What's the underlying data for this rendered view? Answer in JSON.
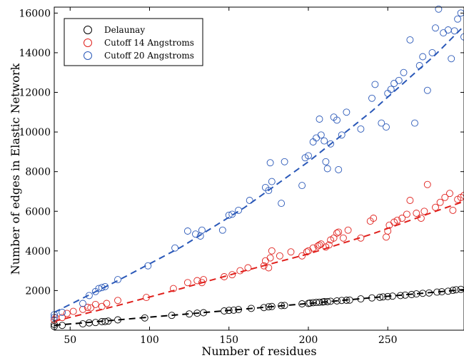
{
  "chart_data": {
    "type": "scatter",
    "xlabel": "Number of residues",
    "ylabel": "Number of edges in Elastic Network",
    "xlim": [
      40,
      298
    ],
    "ylim": [
      0,
      16300
    ],
    "xticks": [
      50,
      100,
      150,
      200,
      250
    ],
    "yticks": [
      2000,
      4000,
      6000,
      8000,
      10000,
      12000,
      14000,
      16000
    ],
    "grid": false,
    "legend_position": "top-left",
    "series": [
      {
        "name": "Delaunay",
        "color": "#000000",
        "marker": "open-circle",
        "fit": "dashed",
        "fit_points": [
          [
            40,
            245
          ],
          [
            80,
            520
          ],
          [
            120,
            790
          ],
          [
            160,
            1070
          ],
          [
            200,
            1350
          ],
          [
            240,
            1640
          ],
          [
            280,
            1920
          ],
          [
            298,
            2050
          ]
        ],
        "points": [
          [
            40,
            190
          ],
          [
            40,
            290
          ],
          [
            45,
            240
          ],
          [
            58,
            320
          ],
          [
            62,
            370
          ],
          [
            66,
            390
          ],
          [
            70,
            430
          ],
          [
            72,
            440
          ],
          [
            74,
            460
          ],
          [
            80,
            520
          ],
          [
            97,
            620
          ],
          [
            114,
            750
          ],
          [
            125,
            820
          ],
          [
            130,
            860
          ],
          [
            134,
            880
          ],
          [
            147,
            970
          ],
          [
            150,
            1000
          ],
          [
            153,
            1010
          ],
          [
            156,
            1040
          ],
          [
            164,
            1100
          ],
          [
            172,
            1140
          ],
          [
            175,
            1180
          ],
          [
            177,
            1200
          ],
          [
            183,
            1240
          ],
          [
            185,
            1250
          ],
          [
            196,
            1330
          ],
          [
            200,
            1350
          ],
          [
            201,
            1370
          ],
          [
            203,
            1390
          ],
          [
            205,
            1400
          ],
          [
            207,
            1410
          ],
          [
            209,
            1420
          ],
          [
            210,
            1440
          ],
          [
            212,
            1440
          ],
          [
            214,
            1460
          ],
          [
            218,
            1480
          ],
          [
            221,
            1500
          ],
          [
            224,
            1510
          ],
          [
            226,
            1520
          ],
          [
            233,
            1580
          ],
          [
            240,
            1630
          ],
          [
            245,
            1660
          ],
          [
            247,
            1680
          ],
          [
            250,
            1700
          ],
          [
            253,
            1720
          ],
          [
            258,
            1750
          ],
          [
            261,
            1770
          ],
          [
            265,
            1800
          ],
          [
            268,
            1830
          ],
          [
            272,
            1860
          ],
          [
            276,
            1880
          ],
          [
            281,
            1920
          ],
          [
            284,
            1940
          ],
          [
            288,
            1970
          ],
          [
            291,
            2010
          ],
          [
            293,
            2040
          ],
          [
            296,
            2060
          ]
        ]
      },
      {
        "name": "Cutoff 14 Angstroms",
        "color": "#e0201c",
        "marker": "open-circle",
        "fit": "dashed",
        "fit_points": [
          [
            40,
            450
          ],
          [
            80,
            1250
          ],
          [
            120,
            2100
          ],
          [
            160,
            3000
          ],
          [
            200,
            3850
          ],
          [
            240,
            4850
          ],
          [
            280,
            6000
          ],
          [
            298,
            6500
          ]
        ],
        "points": [
          [
            40,
            520
          ],
          [
            41,
            620
          ],
          [
            45,
            640
          ],
          [
            48,
            850
          ],
          [
            52,
            950
          ],
          [
            58,
            1050
          ],
          [
            61,
            1150
          ],
          [
            63,
            1130
          ],
          [
            66,
            1300
          ],
          [
            70,
            1200
          ],
          [
            73,
            1350
          ],
          [
            80,
            1500
          ],
          [
            98,
            1650
          ],
          [
            115,
            2100
          ],
          [
            124,
            2400
          ],
          [
            130,
            2500
          ],
          [
            133,
            2400
          ],
          [
            134,
            2550
          ],
          [
            147,
            2700
          ],
          [
            152,
            2800
          ],
          [
            157,
            3000
          ],
          [
            162,
            3150
          ],
          [
            172,
            3250
          ],
          [
            173,
            3500
          ],
          [
            175,
            3150
          ],
          [
            176,
            3650
          ],
          [
            177,
            4000
          ],
          [
            182,
            3750
          ],
          [
            189,
            3950
          ],
          [
            196,
            3750
          ],
          [
            199,
            3950
          ],
          [
            200,
            4000
          ],
          [
            203,
            4150
          ],
          [
            206,
            4250
          ],
          [
            207,
            4300
          ],
          [
            208,
            4350
          ],
          [
            211,
            4200
          ],
          [
            213,
            4300
          ],
          [
            214,
            4550
          ],
          [
            216,
            4650
          ],
          [
            218,
            4900
          ],
          [
            219,
            4950
          ],
          [
            222,
            4650
          ],
          [
            225,
            5050
          ],
          [
            233,
            4650
          ],
          [
            239,
            5500
          ],
          [
            241,
            5650
          ],
          [
            249,
            4700
          ],
          [
            250,
            5000
          ],
          [
            251,
            5300
          ],
          [
            254,
            5450
          ],
          [
            256,
            5550
          ],
          [
            259,
            5650
          ],
          [
            262,
            5850
          ],
          [
            264,
            6550
          ],
          [
            268,
            5900
          ],
          [
            271,
            5650
          ],
          [
            273,
            6000
          ],
          [
            275,
            7350
          ],
          [
            280,
            6200
          ],
          [
            283,
            6450
          ],
          [
            286,
            6700
          ],
          [
            289,
            6900
          ],
          [
            291,
            6050
          ],
          [
            294,
            6600
          ],
          [
            296,
            6700
          ],
          [
            298,
            6800
          ]
        ]
      },
      {
        "name": "Cutoff 20 Angstroms",
        "color": "#2a58b8",
        "marker": "open-circle",
        "fit": "dashed",
        "fit_points": [
          [
            40,
            900
          ],
          [
            80,
            2500
          ],
          [
            120,
            4200
          ],
          [
            160,
            6200
          ],
          [
            200,
            8500
          ],
          [
            240,
            11050
          ],
          [
            280,
            13900
          ],
          [
            298,
            15350
          ]
        ],
        "points": [
          [
            40,
            650
          ],
          [
            40,
            780
          ],
          [
            45,
            900
          ],
          [
            58,
            1350
          ],
          [
            62,
            1750
          ],
          [
            66,
            1950
          ],
          [
            68,
            2100
          ],
          [
            70,
            2150
          ],
          [
            72,
            2200
          ],
          [
            80,
            2550
          ],
          [
            99,
            3250
          ],
          [
            116,
            4150
          ],
          [
            124,
            5000
          ],
          [
            129,
            4850
          ],
          [
            132,
            4750
          ],
          [
            133,
            5050
          ],
          [
            146,
            5050
          ],
          [
            150,
            5800
          ],
          [
            152,
            5850
          ],
          [
            156,
            6050
          ],
          [
            163,
            6550
          ],
          [
            173,
            7200
          ],
          [
            175,
            7050
          ],
          [
            176,
            8450
          ],
          [
            177,
            7500
          ],
          [
            183,
            6400
          ],
          [
            185,
            8500
          ],
          [
            196,
            7300
          ],
          [
            198,
            8700
          ],
          [
            200,
            8800
          ],
          [
            203,
            9500
          ],
          [
            205,
            9700
          ],
          [
            207,
            10650
          ],
          [
            208,
            9850
          ],
          [
            210,
            9550
          ],
          [
            211,
            8500
          ],
          [
            212,
            8150
          ],
          [
            214,
            9400
          ],
          [
            216,
            10750
          ],
          [
            218,
            10600
          ],
          [
            219,
            8100
          ],
          [
            221,
            9850
          ],
          [
            224,
            11000
          ],
          [
            233,
            10150
          ],
          [
            240,
            11700
          ],
          [
            242,
            12400
          ],
          [
            246,
            10450
          ],
          [
            249,
            10250
          ],
          [
            250,
            11950
          ],
          [
            252,
            12150
          ],
          [
            254,
            12450
          ],
          [
            257,
            12600
          ],
          [
            260,
            13000
          ],
          [
            264,
            14650
          ],
          [
            267,
            10450
          ],
          [
            270,
            13350
          ],
          [
            272,
            13800
          ],
          [
            275,
            12100
          ],
          [
            278,
            14000
          ],
          [
            280,
            15250
          ],
          [
            282,
            16200
          ],
          [
            285,
            15000
          ],
          [
            288,
            15150
          ],
          [
            290,
            13700
          ],
          [
            292,
            15100
          ],
          [
            294,
            15700
          ],
          [
            296,
            16000
          ],
          [
            298,
            14800
          ]
        ]
      }
    ]
  }
}
